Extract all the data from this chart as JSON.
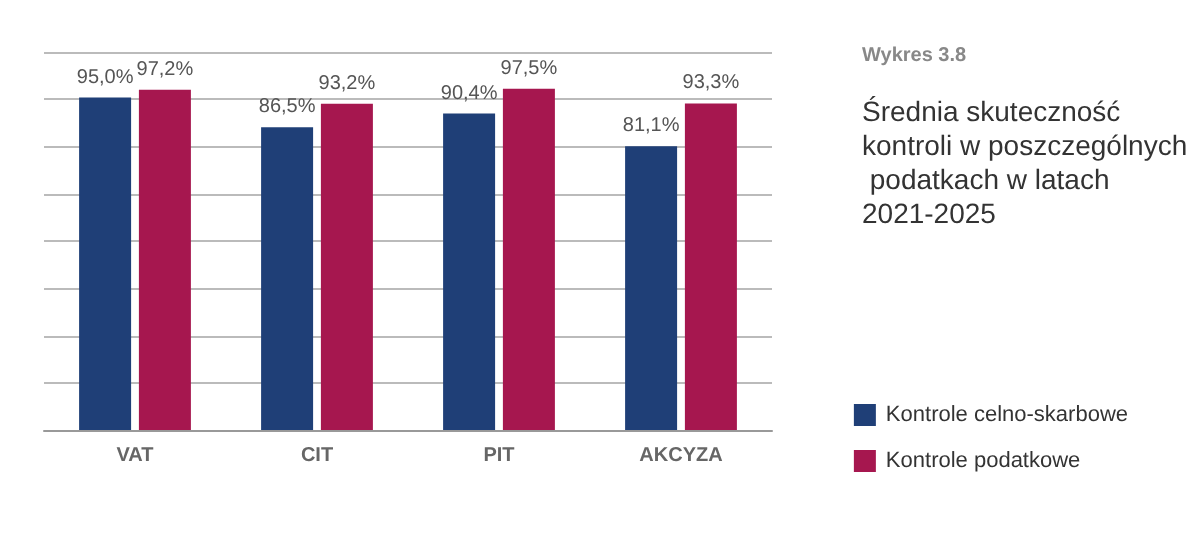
{
  "chart_data": {
    "type": "bar",
    "subtitle": "Wykres 3.8",
    "title": "Średnia skuteczność kontroli w poszczególnych podatkach w latach 2021-2025",
    "categories": [
      "VAT",
      "CIT",
      "PIT",
      "AKCYZA"
    ],
    "series": [
      {
        "name": "Kontrole celno-skarbowe",
        "color": "#1f3f77",
        "values": [
          95.0,
          86.5,
          90.4,
          81.1
        ],
        "value_labels": [
          "95,0%",
          "86,5%",
          "90,4%",
          "81,1%"
        ]
      },
      {
        "name": "Kontrole podatkowe",
        "color": "#a6174f",
        "values": [
          97.2,
          93.2,
          97.5,
          93.3
        ],
        "value_labels": [
          "97,2%",
          "93,2%",
          "97,5%",
          "93,3%"
        ]
      }
    ],
    "ylim": [
      0,
      108
    ],
    "yticks": [
      {
        "value": 0,
        "label": null
      },
      {
        "value": 13.5,
        "label": null
      },
      {
        "value": 27,
        "label": null
      },
      {
        "value": 40.5,
        "label": null
      },
      {
        "value": 54,
        "label": null
      },
      {
        "value": 67.5,
        "label": null
      },
      {
        "value": 81,
        "label": null
      },
      {
        "value": 94.5,
        "label": null
      },
      {
        "value": 108,
        "label": null
      }
    ],
    "grid": "y",
    "legend": "bottom right",
    "tick_labels": "x"
  }
}
